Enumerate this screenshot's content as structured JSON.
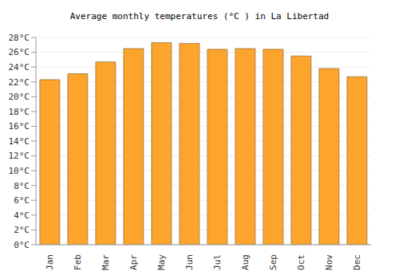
{
  "chart_data": {
    "type": "bar",
    "title": "Average monthly temperatures (°C ) in La Libertad",
    "categories": [
      "Jan",
      "Feb",
      "Mar",
      "Apr",
      "May",
      "Jun",
      "Jul",
      "Aug",
      "Sep",
      "Oct",
      "Nov",
      "Dec"
    ],
    "values": [
      22.3,
      23.1,
      24.7,
      26.5,
      27.3,
      27.2,
      26.4,
      26.5,
      26.4,
      25.5,
      23.8,
      22.7
    ],
    "color": "#fca42c",
    "ylim": [
      0,
      28
    ],
    "yticks": [
      {
        "value": 0,
        "label": "0°C"
      },
      {
        "value": 2,
        "label": "2°C"
      },
      {
        "value": 4,
        "label": "4°C"
      },
      {
        "value": 6,
        "label": "6°C"
      },
      {
        "value": 8,
        "label": "8°C"
      },
      {
        "value": 10,
        "label": "10°C"
      },
      {
        "value": 12,
        "label": "12°C"
      },
      {
        "value": 14,
        "label": "14°C"
      },
      {
        "value": 16,
        "label": "16°C"
      },
      {
        "value": 18,
        "label": "18°C"
      },
      {
        "value": 20,
        "label": "20°C"
      },
      {
        "value": 22,
        "label": "22°C"
      },
      {
        "value": 24,
        "label": "24°C"
      },
      {
        "value": 26,
        "label": "26°C"
      },
      {
        "value": 28,
        "label": "28°C"
      }
    ],
    "grid": true
  }
}
